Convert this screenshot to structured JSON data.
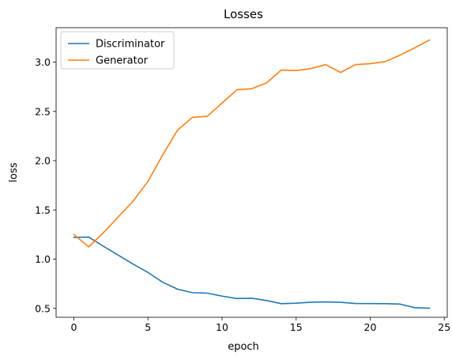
{
  "chart_data": {
    "type": "line",
    "title": "Losses",
    "xlabel": "epoch",
    "ylabel": "loss",
    "xlim": [
      -1.2,
      25.2
    ],
    "ylim": [
      0.41,
      3.35
    ],
    "xticks": [
      0,
      5,
      10,
      15,
      20,
      25
    ],
    "yticks": [
      0.5,
      1.0,
      1.5,
      2.0,
      2.5,
      3.0
    ],
    "xtick_labels": [
      "0",
      "5",
      "10",
      "15",
      "20",
      "25"
    ],
    "ytick_labels": [
      "0.5",
      "1.0",
      "1.5",
      "2.0",
      "2.5",
      "3.0"
    ],
    "grid": false,
    "legend_position": "upper-left",
    "x": [
      0,
      1,
      2,
      3,
      4,
      5,
      6,
      7,
      8,
      9,
      10,
      11,
      12,
      13,
      14,
      15,
      16,
      17,
      18,
      19,
      20,
      21,
      22,
      23,
      24
    ],
    "series": [
      {
        "name": "Discriminator",
        "color": "#1f77b4",
        "values": [
          1.22,
          1.225,
          1.13,
          1.04,
          0.95,
          0.865,
          0.765,
          0.695,
          0.66,
          0.655,
          0.625,
          0.6,
          0.603,
          0.58,
          0.548,
          0.553,
          0.563,
          0.566,
          0.562,
          0.55,
          0.549,
          0.548,
          0.544,
          0.508,
          0.502
        ]
      },
      {
        "name": "Generator",
        "color": "#ff7f0e",
        "values": [
          1.25,
          1.125,
          1.27,
          1.43,
          1.59,
          1.79,
          2.06,
          2.31,
          2.44,
          2.45,
          2.585,
          2.72,
          2.73,
          2.79,
          2.92,
          2.915,
          2.935,
          2.975,
          2.895,
          2.975,
          2.985,
          3.005,
          3.07,
          3.145,
          3.225
        ]
      }
    ]
  }
}
